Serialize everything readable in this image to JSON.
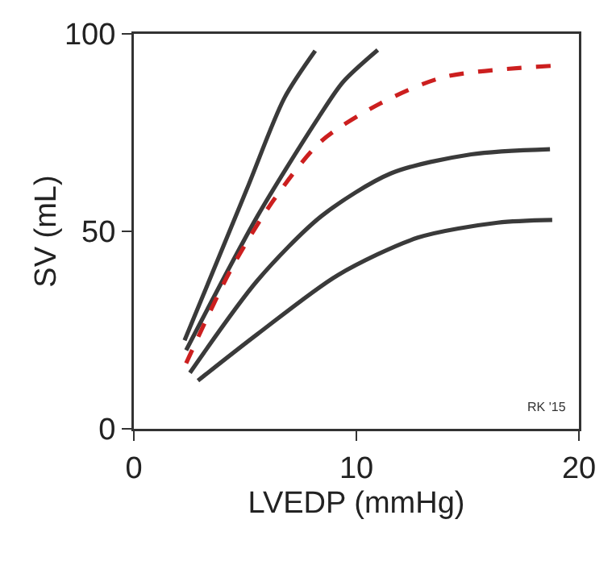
{
  "chart_data": {
    "type": "line",
    "xlabel": "LVEDP (mmHg)",
    "ylabel": "SV (mL)",
    "xlim": [
      0,
      20
    ],
    "xticks": [
      0,
      10,
      20
    ],
    "ylim": [
      0,
      100
    ],
    "yticks": [
      0,
      50,
      100
    ],
    "grid": false,
    "annotations": [
      "RK '15"
    ],
    "series": [
      {
        "color": "#3a3a3a",
        "line_style": "solid",
        "x": [
          2.28,
          5.08,
          6.76,
          8.15
        ],
        "values": [
          22.4,
          60.7,
          83.7,
          95.7
        ]
      },
      {
        "color": "#3a3a3a",
        "line_style": "solid",
        "x": [
          2.35,
          5.56,
          8.32,
          9.4,
          10.96
        ],
        "values": [
          19.9,
          53.9,
          79,
          87.8,
          95.9
        ]
      },
      {
        "color": "#cc1f1f",
        "line_style": "dashed",
        "x": [
          2.35,
          4.36,
          6.28,
          8.44,
          11.08,
          13.96,
          18.75
        ],
        "values": [
          16.6,
          40.3,
          57.9,
          72.9,
          82.4,
          89.1,
          91.9
        ]
      },
      {
        "color": "#3a3a3a",
        "line_style": "solid",
        "x": [
          2.52,
          5.56,
          8.44,
          11.56,
          15.16,
          18.7
        ],
        "values": [
          14.2,
          37.6,
          53.9,
          64.7,
          69.5,
          70.8
        ]
      },
      {
        "color": "#3a3a3a",
        "line_style": "solid",
        "x": [
          2.88,
          5.56,
          9.16,
          12.76,
          16.35,
          18.8
        ],
        "values": [
          12.2,
          24,
          38.9,
          48.4,
          52.2,
          52.9
        ]
      }
    ]
  }
}
